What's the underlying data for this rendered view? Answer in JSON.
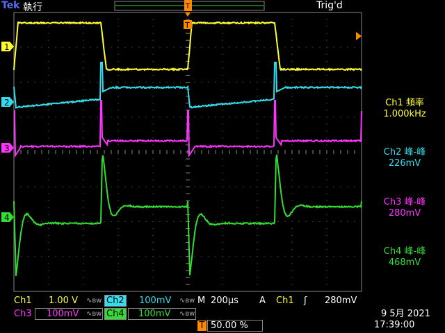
{
  "header": {
    "brand": "Tek",
    "run_state": "執行",
    "trigger_status": "Trig'd",
    "trigger_marker": "T"
  },
  "colors": {
    "ch1": "#ffff33",
    "ch2": "#33ddee",
    "ch3": "#ff33ff",
    "ch4": "#33dd33",
    "grid": "#777777",
    "trigger": "#ff8800"
  },
  "channel_markers": [
    "1",
    "2",
    "3",
    "4"
  ],
  "measurements": [
    {
      "name": "Ch1 頻率",
      "value": "1.000kHz"
    },
    {
      "name": "Ch2 峰-峰",
      "value": "226mV"
    },
    {
      "name": "Ch3 峰-峰",
      "value": "280mV"
    },
    {
      "name": "Ch4 峰-峰",
      "value": "468mV"
    }
  ],
  "settings": {
    "ch1_label": "Ch1",
    "ch1_scale": "1.00 V",
    "ch2_label": "Ch2",
    "ch2_scale": "100mV",
    "ch3_label": "Ch3",
    "ch3_scale": "100mV",
    "ch4_label": "Ch4",
    "ch4_scale": "100mV",
    "bw_limit": "∿ʙw",
    "timebase_label": "M",
    "timebase": "200µs",
    "acq_label": "A",
    "trigger_source": "Ch1",
    "trigger_slope": "ʃ",
    "trigger_level": "280mV",
    "trigger_position_marker": "T",
    "trigger_position": "50.00 %"
  },
  "clock": {
    "date": "9 5月  2021",
    "time": "17:39:00"
  }
}
